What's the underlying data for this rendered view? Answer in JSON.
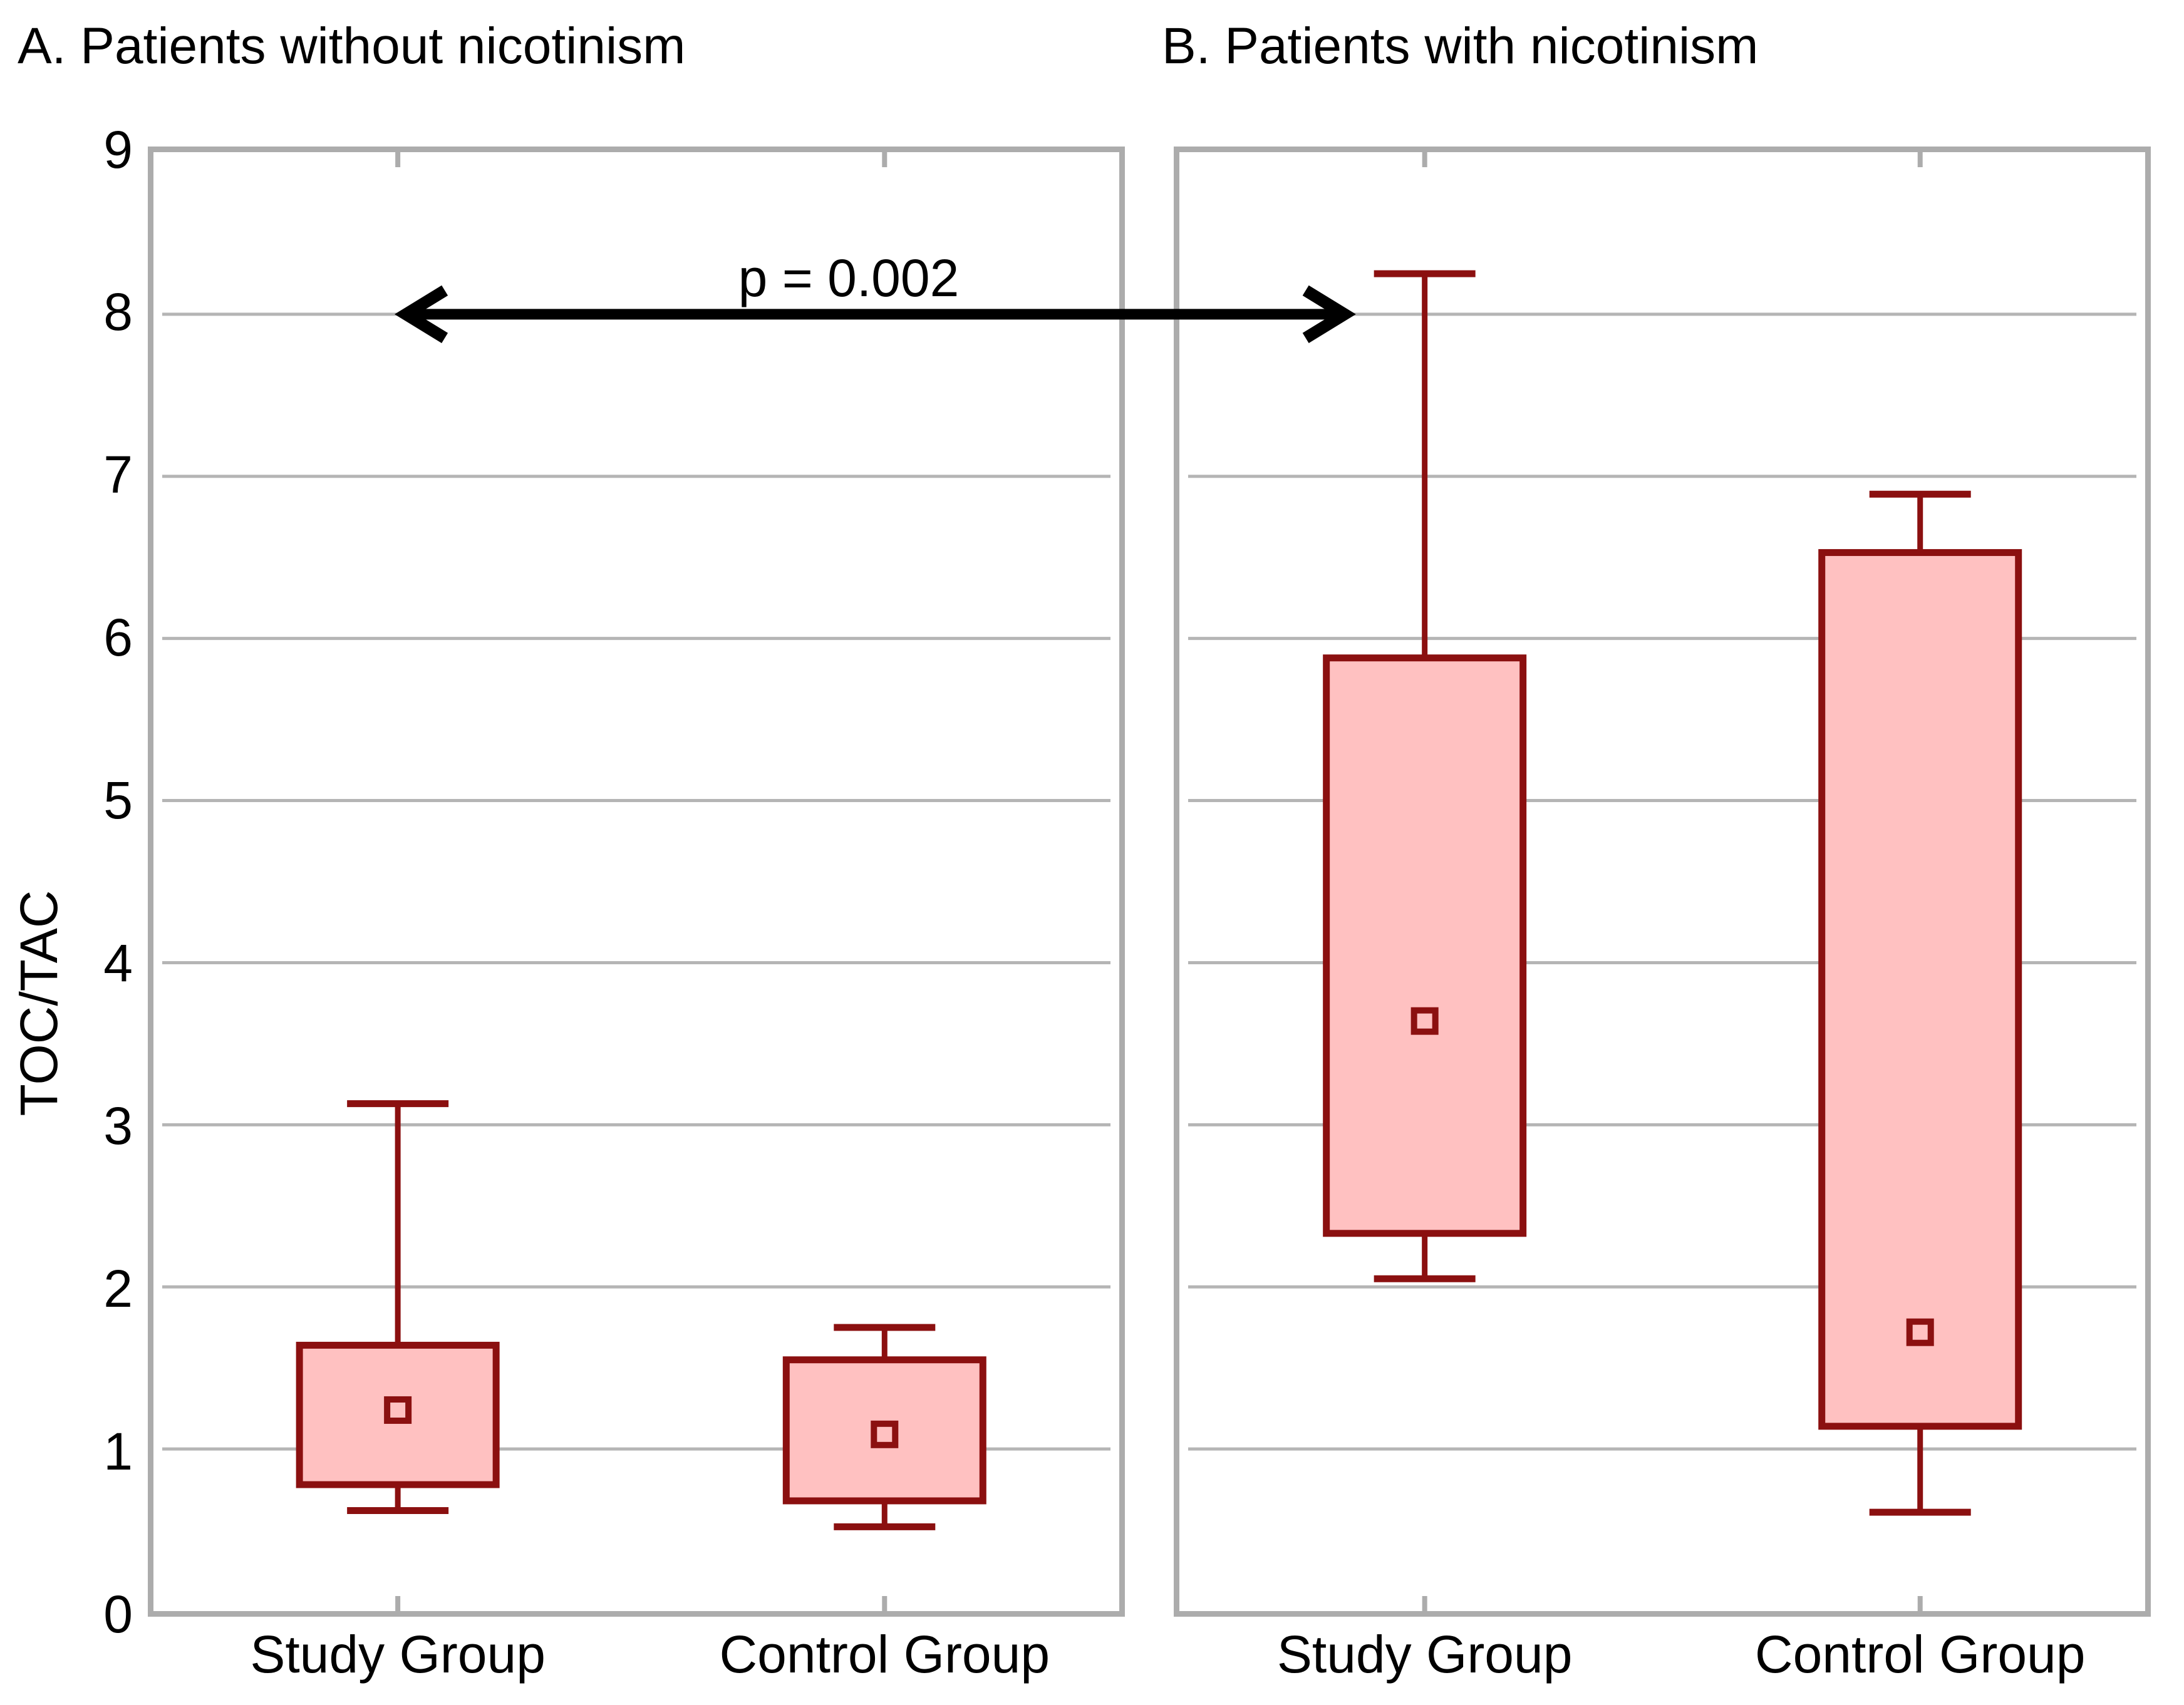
{
  "figure": {
    "panel_a_title": "A. Patients without nicotinism",
    "panel_b_title": "B. Patients with nicotinism"
  },
  "y_axis": {
    "label": "TOC/TAC",
    "min": 0,
    "max": 9,
    "tick_labels": [
      "0",
      "1",
      "2",
      "3",
      "4",
      "5",
      "6",
      "7",
      "8",
      "9"
    ]
  },
  "x_axis": {
    "categories": [
      "Study Group",
      "Control Group"
    ]
  },
  "annotation": {
    "text": "p = 0.002",
    "y_value": 8,
    "spans": "Panel A Study Group to Panel B Study Group"
  },
  "colors": {
    "box_fill": "#FFC1C1",
    "box_border": "#8B1010",
    "gridline": "#B5B5B5",
    "frame": "#ACACAC",
    "arrow": "#000000",
    "text": "#000000",
    "background": "#FFFFFF"
  },
  "chart_data": [
    {
      "type": "boxplot",
      "panel": "A",
      "title": "A. Patients without nicotinism",
      "ylabel": "TOC/TAC",
      "ylim": [
        0,
        9
      ],
      "grid": "horizontal",
      "marker": "open-square-mean",
      "categories": [
        "Study Group",
        "Control Group"
      ],
      "series": [
        {
          "name": "Study Group",
          "whisker_low": 0.62,
          "q1": 0.78,
          "mean": 1.24,
          "q3": 1.64,
          "whisker_high": 3.13
        },
        {
          "name": "Control Group",
          "whisker_low": 0.52,
          "q1": 0.68,
          "mean": 1.09,
          "q3": 1.55,
          "whisker_high": 1.75
        }
      ]
    },
    {
      "type": "boxplot",
      "panel": "B",
      "title": "B. Patients with nicotinism",
      "ylabel": "TOC/TAC",
      "ylim": [
        0,
        9
      ],
      "grid": "horizontal",
      "marker": "open-square-mean",
      "categories": [
        "Study Group",
        "Control Group"
      ],
      "series": [
        {
          "name": "Study Group",
          "whisker_low": 2.05,
          "q1": 2.33,
          "mean": 3.64,
          "q3": 5.88,
          "whisker_high": 8.25
        },
        {
          "name": "Control Group",
          "whisker_low": 0.61,
          "q1": 1.14,
          "mean": 1.72,
          "q3": 6.53,
          "whisker_high": 6.89
        }
      ]
    }
  ]
}
